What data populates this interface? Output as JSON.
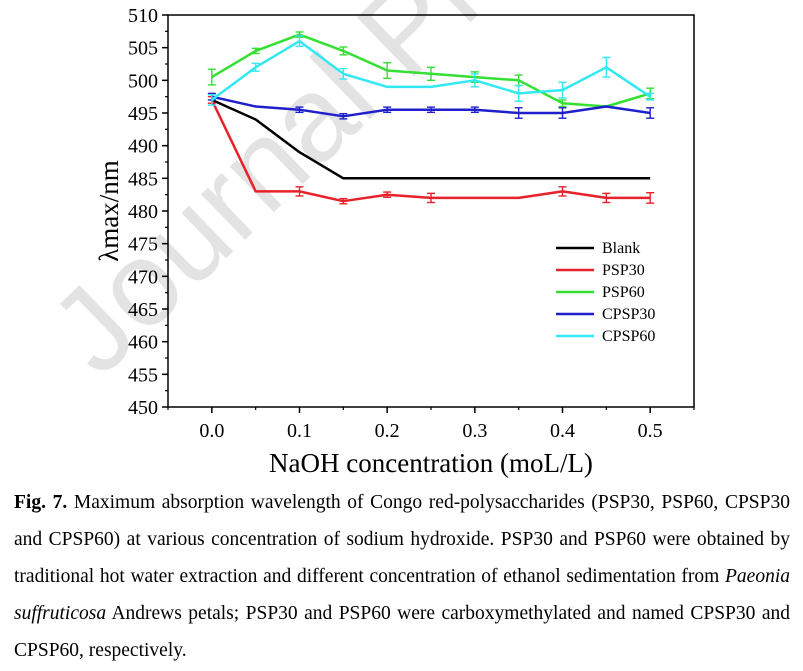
{
  "watermark": "Journal Pre-proof",
  "chart_data": {
    "type": "line",
    "xlabel": "NaOH concentration (moL/L)",
    "ylabel": "λmax/nm",
    "xlim": [
      -0.05,
      0.55
    ],
    "ylim": [
      450,
      510
    ],
    "x_ticks": [
      "0.0",
      "0.1",
      "0.2",
      "0.3",
      "0.4",
      "0.5"
    ],
    "y_ticks": [
      "450",
      "455",
      "460",
      "465",
      "470",
      "475",
      "480",
      "485",
      "490",
      "495",
      "500",
      "505",
      "510"
    ],
    "legend_position": "lower-right",
    "series": [
      {
        "name": "Blank",
        "color": "#000000",
        "x": [
          0,
          0.05,
          0.1,
          0.15,
          0.2,
          0.25,
          0.3,
          0.35,
          0.4,
          0.45,
          0.5
        ],
        "y": [
          497,
          494,
          489,
          485,
          485,
          485,
          485,
          485,
          485,
          485,
          485
        ],
        "err": null
      },
      {
        "name": "PSP30",
        "color": "#e8212a",
        "x": [
          0,
          0.05,
          0.1,
          0.15,
          0.2,
          0.25,
          0.3,
          0.35,
          0.4,
          0.45,
          0.5
        ],
        "y": [
          497,
          483,
          483,
          481.5,
          482.5,
          482,
          482,
          482,
          483,
          482,
          482
        ],
        "err": [
          0.5,
          0,
          0.7,
          0.4,
          0.4,
          0.7,
          0,
          0,
          0.7,
          0.7,
          0.8
        ]
      },
      {
        "name": "PSP60",
        "color": "#33e033",
        "x": [
          0,
          0.05,
          0.1,
          0.15,
          0.2,
          0.25,
          0.3,
          0.35,
          0.4,
          0.45,
          0.5
        ],
        "y": [
          500.5,
          504.5,
          507,
          504.5,
          501.5,
          501,
          500.5,
          500,
          496.5,
          496,
          498
        ],
        "err": [
          1.2,
          0.4,
          0.4,
          0.6,
          1.2,
          1.0,
          0.8,
          0.8,
          0.5,
          0,
          0.8
        ]
      },
      {
        "name": "CPSP30",
        "color": "#1f1fcc",
        "x": [
          0,
          0.05,
          0.1,
          0.15,
          0.2,
          0.25,
          0.3,
          0.35,
          0.4,
          0.45,
          0.5
        ],
        "y": [
          497.5,
          496,
          495.5,
          494.5,
          495.5,
          495.5,
          495.5,
          495,
          495,
          496,
          495
        ],
        "err": [
          0.5,
          0,
          0.4,
          0.4,
          0.4,
          0.4,
          0.4,
          0.8,
          0.8,
          0,
          0.8
        ]
      },
      {
        "name": "CPSP60",
        "color": "#33e8f2",
        "x": [
          0,
          0.05,
          0.1,
          0.15,
          0.2,
          0.25,
          0.3,
          0.35,
          0.4,
          0.45,
          0.5
        ],
        "y": [
          497,
          502,
          506,
          501,
          499,
          499,
          500,
          498,
          498.5,
          502,
          497.5
        ],
        "err": [
          0.8,
          0.6,
          0.8,
          0.8,
          0,
          0,
          1.0,
          1.2,
          1.2,
          1.5,
          0.5
        ]
      }
    ]
  },
  "caption": {
    "fig_label": "Fig. 7.",
    "text_before_italic": " Maximum absorption wavelength of Congo red-polysaccharides (PSP30, PSP60, CPSP30 and CPSP60) at various concentration of sodium hydroxide. PSP30 and PSP60 were obtained by traditional hot water extraction and different concentration of ethanol sedimentation from ",
    "italic": "Paeonia suffruticosa",
    "text_after_italic": " Andrews petals; PSP30 and PSP60 were carboxymethylated and named CPSP30 and CPSP60, respectively."
  }
}
